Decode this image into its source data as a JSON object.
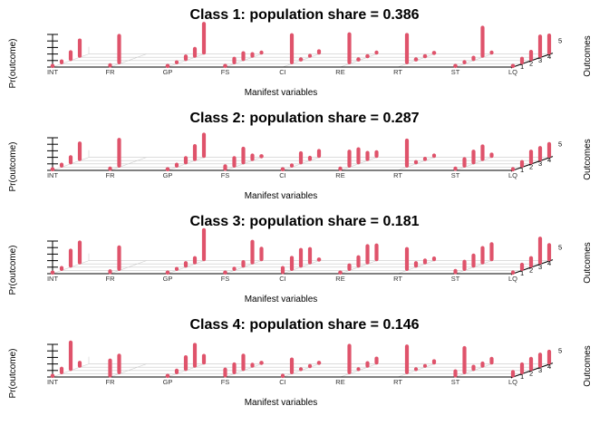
{
  "chart_data": [
    {
      "type": "bar",
      "title": "Class 1: population share = 0.386",
      "xlabel": "Manifest variables",
      "ylabel": "Pr(outcome)",
      "zlabel": "Outcomes",
      "categories": [
        "INT",
        "FR",
        "GP",
        "FS",
        "CI",
        "RE",
        "RT",
        "ST",
        "LQ"
      ],
      "outcomes": [
        "1",
        "2",
        "3",
        "4",
        "5"
      ],
      "color": "#DF536B",
      "probabilities": [
        [
          0.02,
          0.12,
          0.3,
          0.56,
          0.0
        ],
        [
          0.1,
          0.9,
          0.0,
          0.0,
          0.0
        ],
        [
          0.02,
          0.09,
          0.17,
          0.3,
          0.97
        ],
        [
          0.06,
          0.2,
          0.27,
          0.14,
          0.09
        ],
        [
          0.0,
          0.92,
          0.04,
          0.09,
          0.13
        ],
        [
          0.0,
          0.95,
          0.04,
          0.03,
          0.09
        ],
        [
          0.0,
          0.93,
          0.02,
          0.05,
          0.06
        ],
        [
          0.02,
          0.1,
          0.13,
          0.95,
          0.09
        ],
        [
          0.06,
          0.2,
          0.31,
          0.68,
          0.61
        ]
      ]
    },
    {
      "type": "bar",
      "title": "Class 2: population share = 0.287",
      "xlabel": "Manifest variables",
      "ylabel": "Pr(outcome)",
      "zlabel": "Outcomes",
      "categories": [
        "INT",
        "FR",
        "GP",
        "FS",
        "CI",
        "RE",
        "RT",
        "ST",
        "LQ"
      ],
      "outcomes": [
        "1",
        "2",
        "3",
        "4",
        "5"
      ],
      "color": "#DF536B",
      "probabilities": [
        [
          0.02,
          0.12,
          0.25,
          0.57,
          0.0
        ],
        [
          0.1,
          0.88,
          0.0,
          0.0,
          0.0
        ],
        [
          0.02,
          0.12,
          0.22,
          0.49,
          0.74
        ],
        [
          0.17,
          0.32,
          0.51,
          0.2,
          0.04
        ],
        [
          0.06,
          0.1,
          0.37,
          0.13,
          0.24
        ],
        [
          0.1,
          0.52,
          0.49,
          0.28,
          0.2
        ],
        [
          0.0,
          0.86,
          0.1,
          0.1,
          0.1
        ],
        [
          0.1,
          0.29,
          0.42,
          0.48,
          0.13
        ],
        [
          0.07,
          0.2,
          0.42,
          0.43,
          0.45
        ]
      ]
    },
    {
      "type": "bar",
      "title": "Class 3: population share = 0.181",
      "xlabel": "Manifest variables",
      "ylabel": "Pr(outcome)",
      "zlabel": "Outcomes",
      "categories": [
        "INT",
        "FR",
        "GP",
        "FS",
        "CI",
        "RE",
        "RT",
        "ST",
        "LQ"
      ],
      "outcomes": [
        "1",
        "2",
        "3",
        "4",
        "5"
      ],
      "color": "#DF536B",
      "probabilities": [
        [
          0.02,
          0.12,
          0.55,
          0.7,
          0.0
        ],
        [
          0.12,
          0.75,
          0.0,
          0.0,
          0.0
        ],
        [
          0.02,
          0.09,
          0.17,
          0.22,
          0.98
        ],
        [
          0.06,
          0.1,
          0.2,
          0.72,
          0.41
        ],
        [
          0.22,
          0.43,
          0.57,
          0.5,
          0.04
        ],
        [
          0.04,
          0.2,
          0.35,
          0.59,
          0.51
        ],
        [
          0.0,
          0.7,
          0.17,
          0.15,
          0.11
        ],
        [
          0.13,
          0.31,
          0.4,
          0.53,
          0.55
        ],
        [
          0.07,
          0.22,
          0.32,
          0.82,
          0.52
        ]
      ]
    },
    {
      "type": "bar",
      "title": "Class 4: population share = 0.146",
      "xlabel": "Manifest variables",
      "ylabel": "Pr(outcome)",
      "zlabel": "Outcomes",
      "categories": [
        "INT",
        "FR",
        "GP",
        "FS",
        "CI",
        "RE",
        "RT",
        "ST",
        "LQ"
      ],
      "outcomes": [
        "1",
        "2",
        "3",
        "4",
        "5"
      ],
      "color": "#DF536B",
      "probabilities": [
        [
          0.05,
          0.2,
          0.9,
          0.18,
          0.0
        ],
        [
          0.55,
          0.6,
          0.0,
          0.0,
          0.0
        ],
        [
          0.02,
          0.14,
          0.45,
          0.73,
          0.29
        ],
        [
          0.27,
          0.33,
          0.5,
          0.12,
          0.03
        ],
        [
          0.07,
          0.48,
          0.08,
          0.07,
          0.06
        ],
        [
          0.0,
          0.9,
          0.08,
          0.17,
          0.21
        ],
        [
          0.0,
          0.88,
          0.08,
          0.08,
          0.13
        ],
        [
          0.22,
          0.83,
          0.16,
          0.16,
          0.2
        ],
        [
          0.2,
          0.33,
          0.4,
          0.43,
          0.42
        ]
      ]
    }
  ]
}
